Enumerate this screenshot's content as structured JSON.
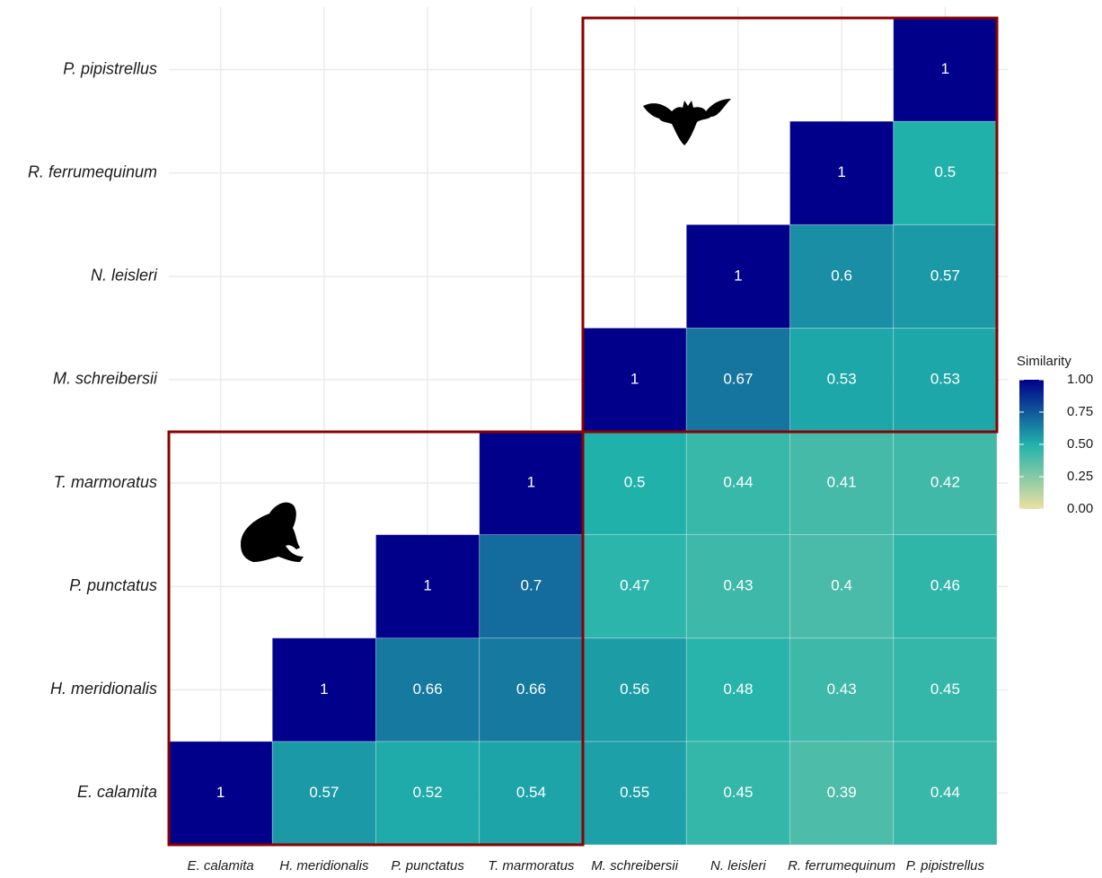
{
  "chart_data": {
    "type": "heatmap",
    "x": [
      "E. calamita",
      "H. meridionalis",
      "P. punctatus",
      "T. marmoratus",
      "M. schreibersii",
      "N. leisleri",
      "R. ferrumequinum",
      "P. pipistrellus"
    ],
    "y": [
      "E. calamita",
      "H. meridionalis",
      "P. punctatus",
      "T. marmoratus",
      "M. schreibersii",
      "N. leisleri",
      "R. ferrumequinum",
      "P. pipistrellus"
    ],
    "z": [
      [
        1,
        0.57,
        0.52,
        0.54,
        0.55,
        0.45,
        0.39,
        0.44
      ],
      [
        null,
        1,
        0.66,
        0.66,
        0.56,
        0.48,
        0.43,
        0.45
      ],
      [
        null,
        null,
        1,
        0.7,
        0.47,
        0.43,
        0.4,
        0.46
      ],
      [
        null,
        null,
        null,
        1,
        0.5,
        0.44,
        0.41,
        0.42
      ],
      [
        null,
        null,
        null,
        null,
        1,
        0.67,
        0.53,
        0.53
      ],
      [
        null,
        null,
        null,
        null,
        null,
        1,
        0.6,
        0.57
      ],
      [
        null,
        null,
        null,
        null,
        null,
        null,
        1,
        0.5
      ],
      [
        null,
        null,
        null,
        null,
        null,
        null,
        null,
        1
      ]
    ],
    "legend_title": "Similarity",
    "zlim": [
      0,
      1
    ],
    "zticks": [
      {
        "value": 0,
        "label": "0.00"
      },
      {
        "value": 0.25,
        "label": "0.25"
      },
      {
        "value": 0.5,
        "label": "0.50"
      },
      {
        "value": 0.75,
        "label": "0.75"
      },
      {
        "value": 1,
        "label": "1.00"
      }
    ],
    "color_scale": [
      {
        "value": 0,
        "color": "#ece0a2"
      },
      {
        "value": 0.5,
        "color": "#20b2aa"
      },
      {
        "value": 1,
        "color": "#00008b"
      }
    ],
    "grid": true
  }
}
